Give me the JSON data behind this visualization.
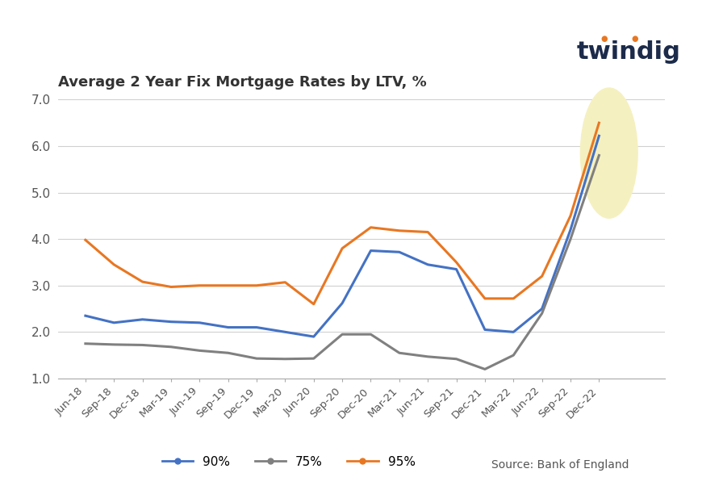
{
  "title": "Average 2 Year Fix Mortgage Rates by LTV, %",
  "title_fontsize": 13,
  "twindig_text": "twindig",
  "source_text": "Source: Bank of England",
  "ylim": [
    1.0,
    7.0
  ],
  "yticks": [
    1.0,
    2.0,
    3.0,
    4.0,
    5.0,
    6.0,
    7.0
  ],
  "x_labels": [
    "Jun-18",
    "Sep-18",
    "Dec-18",
    "Mar-19",
    "Jun-19",
    "Sep-19",
    "Dec-19",
    "Mar-20",
    "Jun-20",
    "Sep-20",
    "Dec-20",
    "Mar-21",
    "Jun-21",
    "Sep-21",
    "Dec-21",
    "Mar-22",
    "Jun-22",
    "Sep-22",
    "Dec-22"
  ],
  "series_90": [
    2.35,
    2.2,
    2.27,
    2.22,
    2.2,
    2.1,
    2.1,
    2.0,
    1.9,
    2.62,
    3.75,
    3.72,
    3.45,
    3.35,
    2.05,
    2.0,
    2.5,
    4.2,
    6.22
  ],
  "series_75": [
    1.75,
    1.73,
    1.72,
    1.68,
    1.6,
    1.55,
    1.43,
    1.42,
    1.43,
    1.95,
    1.95,
    1.55,
    1.47,
    1.42,
    1.2,
    1.5,
    2.4,
    4.0,
    5.8
  ],
  "series_95": [
    3.98,
    3.45,
    3.08,
    2.97,
    3.0,
    3.0,
    3.0,
    3.07,
    2.6,
    3.8,
    4.25,
    4.18,
    4.15,
    3.5,
    2.72,
    2.72,
    3.2,
    4.5,
    6.5
  ],
  "color_90": "#4472C4",
  "color_75": "#808080",
  "color_95": "#E87722",
  "highlight_color": "#F5F0C0",
  "background_color": "#FFFFFF",
  "legend_labels_90": "90%",
  "legend_labels_75": "75%",
  "legend_labels_95": "95%"
}
